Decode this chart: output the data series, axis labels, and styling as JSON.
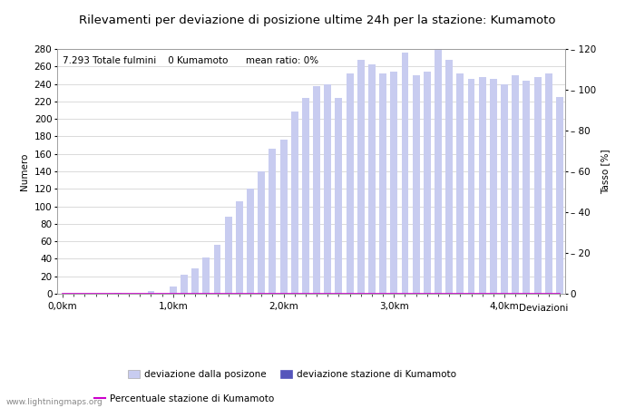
{
  "title": "Rilevamenti per deviazione di posizione ultime 24h per la stazione: Kumamoto",
  "subtitle": "7.293 Totale fulmini    0 Kumamoto      mean ratio: 0%",
  "xlabel": "Deviazioni",
  "ylabel_left": "Numero",
  "ylabel_right": "Tasso [%]",
  "x_tick_labels": [
    "0,0km",
    "1,0km",
    "2,0km",
    "3,0km",
    "4,0km"
  ],
  "x_tick_positions": [
    0,
    10,
    20,
    30,
    40
  ],
  "ylim_left": [
    0,
    280
  ],
  "ylim_right": [
    0,
    120
  ],
  "yticks_left": [
    0,
    20,
    40,
    60,
    80,
    100,
    120,
    140,
    160,
    180,
    200,
    220,
    240,
    260,
    280
  ],
  "yticks_right": [
    0,
    20,
    40,
    60,
    80,
    100,
    120
  ],
  "bar_color_light": "#c8ccf0",
  "bar_color_dark": "#5555bb",
  "line_color": "#cc00cc",
  "background_color": "#ffffff",
  "grid_color": "#cccccc",
  "watermark": "www.lightningmaps.org",
  "legend_labels": [
    "deviazione dalla posizone",
    "deviazione stazione di Kumamoto",
    "Percentuale stazione di Kumamoto"
  ],
  "bar_values": [
    0,
    0,
    0,
    0,
    0,
    1,
    0,
    0,
    3,
    0,
    8,
    22,
    29,
    41,
    56,
    88,
    106,
    120,
    140,
    166,
    176,
    208,
    224,
    238,
    240,
    224,
    252,
    268,
    262,
    252,
    254,
    276,
    250,
    254,
    280,
    268,
    252,
    246,
    248,
    246,
    240,
    250,
    244,
    248,
    252,
    225
  ],
  "station_bar_values": [
    0,
    0,
    0,
    0,
    0,
    0,
    0,
    0,
    0,
    0,
    0,
    0,
    0,
    0,
    0,
    0,
    0,
    0,
    0,
    0,
    0,
    0,
    0,
    0,
    0,
    0,
    0,
    0,
    0,
    0,
    0,
    0,
    0,
    0,
    0,
    0,
    0,
    0,
    0,
    0,
    0,
    0,
    0,
    0,
    0,
    0
  ],
  "line_values": [
    0,
    0,
    0,
    0,
    0,
    0,
    0,
    0,
    0,
    0,
    0,
    0,
    0,
    0,
    0,
    0,
    0,
    0,
    0,
    0,
    0,
    0,
    0,
    0,
    0,
    0,
    0,
    0,
    0,
    0,
    0,
    0,
    0,
    0,
    0,
    0,
    0,
    0,
    0,
    0,
    0,
    0,
    0,
    0,
    0,
    0
  ],
  "num_bars": 46,
  "title_fontsize": 9.5,
  "subtitle_fontsize": 7.5,
  "axis_label_fontsize": 7.5,
  "tick_fontsize": 7.5,
  "legend_fontsize": 7.5,
  "watermark_fontsize": 6.5
}
